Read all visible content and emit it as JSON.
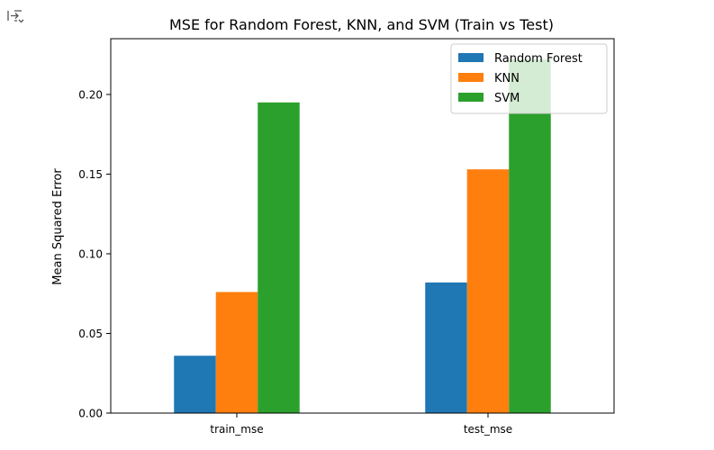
{
  "output_icon": "output-toggle-icon",
  "colors": {
    "random_forest": "#1f77b4",
    "knn": "#ff7f0e",
    "svm": "#2ca02c",
    "axes": "#000000",
    "background": "#ffffff"
  },
  "chart_data": {
    "type": "bar",
    "title": "MSE for Random Forest, KNN, and SVM (Train vs Test)",
    "xlabel": "",
    "ylabel": "Mean Squared Error",
    "categories": [
      "train_mse",
      "test_mse"
    ],
    "series": [
      {
        "name": "Random Forest",
        "values": [
          0.036,
          0.082
        ]
      },
      {
        "name": "KNN",
        "values": [
          0.076,
          0.153
        ]
      },
      {
        "name": "SVM",
        "values": [
          0.195,
          0.222
        ]
      }
    ],
    "ylim": [
      0,
      0.235
    ],
    "yticks": [
      "0.00",
      "0.05",
      "0.10",
      "0.15",
      "0.20"
    ],
    "grid": false,
    "legend": "top-right"
  }
}
